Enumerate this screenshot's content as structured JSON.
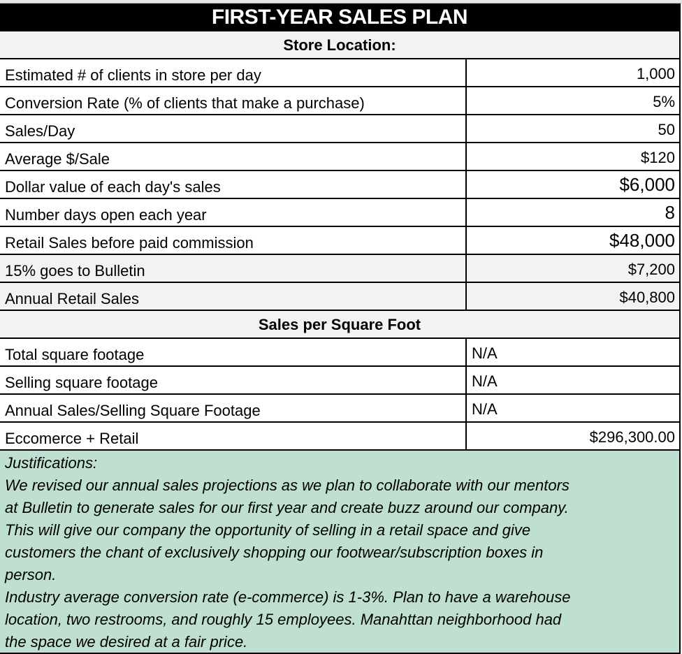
{
  "title": "FIRST-YEAR SALES PLAN",
  "section1": "Store Location:",
  "rows1": [
    {
      "label": "Estimated # of clients in store per day",
      "value": "1,000"
    },
    {
      "label": "Conversion Rate (% of clients that make a purchase)",
      "value": "5%"
    },
    {
      "label": "Sales/Day",
      "value": "50"
    },
    {
      "label": "Average $/Sale",
      "value": "$120"
    },
    {
      "label": "Dollar value of each day's sales",
      "value": "$6,000"
    },
    {
      "label": "Number days open each year",
      "value": "8"
    },
    {
      "label": "Retail Sales before paid commission",
      "value": "$48,000"
    },
    {
      "label": "15% goes to Bulletin",
      "value": "$7,200"
    },
    {
      "label": "Annual Retail Sales",
      "value": "$40,800"
    }
  ],
  "section2": "Sales per Square Foot",
  "rows2": [
    {
      "label": "Total square footage",
      "value": "N/A"
    },
    {
      "label": "Selling square footage",
      "value": "N/A"
    },
    {
      "label": "Annual Sales/Selling Square Footage",
      "value": "N/A"
    },
    {
      "label": "Eccomerce + Retail",
      "value": "$296,300.00"
    }
  ],
  "justifications": {
    "heading": "Justifications:",
    "lines": [
      "We revised our annual sales projections as we plan to collaborate with our mentors",
      "at Bulletin to generate sales for our first year and create buzz around our company.",
      "This will give our company the opportunity of selling in a retail space and give",
      "customers the chant of exclusively shopping our footwear/subscription boxes in",
      "person.",
      "Industry average conversion rate (e-commerce) is 1-3%. Plan to have a warehouse",
      "location, two restrooms, and roughly 15 employees. Manahttan neighborhood had",
      "the space we desired at a fair price."
    ]
  }
}
